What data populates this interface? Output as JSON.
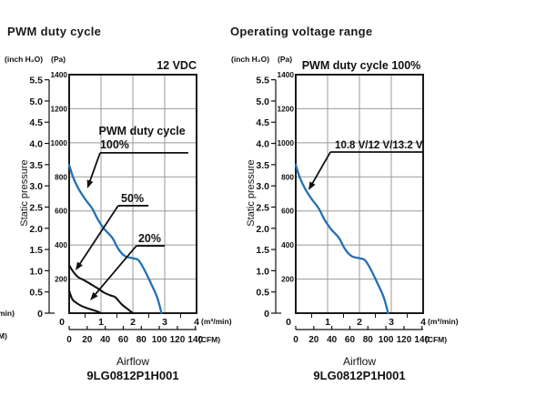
{
  "page": {
    "background": "#ffffff",
    "edge_cutoff": {
      "line1": "min)",
      "line2": "M)"
    }
  },
  "colors": {
    "curve_blue": "#2270b5",
    "curve_black": "#111111",
    "grid_gray": "#999999",
    "axis_black": "#1a1a1a"
  },
  "chart_data": [
    {
      "type": "line",
      "title": "PWM duty cycle",
      "top_label": "12 VDC",
      "xlabel": "Airflow",
      "ylabel": "Static pressure",
      "model": "9LG0812P1H001",
      "xlim": [
        0,
        4
      ],
      "ylim_pa": [
        0,
        1400
      ],
      "grid": true,
      "x_units": [
        {
          "label": "(m³/min)",
          "ticks": [
            "0",
            "1",
            "2",
            "3",
            "4"
          ]
        },
        {
          "label": "(CFM)",
          "ticks": [
            "0",
            "20",
            "40",
            "60",
            "80",
            "100",
            "120",
            "140"
          ]
        }
      ],
      "y_units": [
        {
          "label": "(inch H₂O)",
          "ticks": [
            "0",
            "0.5",
            "1.0",
            "1.5",
            "2.0",
            "2.5",
            "3.0",
            "3.5",
            "4.0",
            "4.5",
            "5.0",
            "5.5"
          ]
        },
        {
          "label": "(Pa)",
          "ticks": [
            "200",
            "400",
            "600",
            "800",
            "1000",
            "1200",
            "1400"
          ]
        }
      ],
      "series": [
        {
          "name": "100%",
          "color": "#2270b5",
          "points_m3min_pa": [
            [
              0,
              870
            ],
            [
              0.12,
              800
            ],
            [
              0.28,
              735
            ],
            [
              0.5,
              670
            ],
            [
              0.72,
              615
            ],
            [
              0.9,
              550
            ],
            [
              1.1,
              495
            ],
            [
              1.35,
              443
            ],
            [
              1.55,
              375
            ],
            [
              1.75,
              335
            ],
            [
              2.0,
              322
            ],
            [
              2.18,
              310
            ],
            [
              2.38,
              248
            ],
            [
              2.58,
              170
            ],
            [
              2.77,
              90
            ],
            [
              2.9,
              0
            ]
          ]
        },
        {
          "name": "50%",
          "color": "#111111",
          "points_m3min_pa": [
            [
              0,
              282
            ],
            [
              0.12,
              245
            ],
            [
              0.28,
              212
            ],
            [
              0.5,
              190
            ],
            [
              0.7,
              168
            ],
            [
              0.9,
              145
            ],
            [
              1.1,
              120
            ],
            [
              1.3,
              104
            ],
            [
              1.45,
              93
            ],
            [
              1.65,
              52
            ],
            [
              1.85,
              22
            ],
            [
              2.0,
              0
            ]
          ]
        },
        {
          "name": "20%",
          "color": "#111111",
          "points_m3min_pa": [
            [
              0,
              132
            ],
            [
              0.1,
              82
            ],
            [
              0.25,
              57
            ],
            [
              0.45,
              37
            ],
            [
              0.65,
              24
            ],
            [
              0.85,
              12
            ],
            [
              1.0,
              0
            ]
          ]
        }
      ],
      "annotations": [
        {
          "text": "PWM duty cycle",
          "size": 12.5,
          "text_anchor": [
            0.93,
            1047
          ]
        },
        {
          "text": "100%",
          "size": 12.5,
          "text_anchor": [
            0.97,
            967
          ],
          "leader": {
            "pa": 941,
            "from": 0.97,
            "to": 3.74
          },
          "tip": [
            0.57,
            732
          ]
        },
        {
          "text": "50%",
          "size": 12.5,
          "text_anchor": [
            1.63,
            652
          ],
          "leader": {
            "pa": 631,
            "from": 1.54,
            "to": 2.49
          },
          "tip": [
            0.2,
            251
          ]
        },
        {
          "text": "20%",
          "size": 12.5,
          "text_anchor": [
            2.17,
            417
          ],
          "leader": {
            "pa": 395,
            "from": 2.11,
            "to": 3.0
          },
          "tip": [
            0.66,
            75
          ]
        }
      ]
    },
    {
      "type": "line",
      "title": "Operating voltage range",
      "top_label": "PWM duty cycle 100%",
      "xlabel": "Airflow",
      "ylabel": "Static pressure",
      "model": "9LG0812P1H001",
      "xlim": [
        0,
        4
      ],
      "ylim_pa": [
        0,
        1400
      ],
      "grid": true,
      "x_units": [
        {
          "label": "(m³/min)",
          "ticks": [
            "0",
            "1",
            "2",
            "3",
            "4"
          ]
        },
        {
          "label": "(CFM)",
          "ticks": [
            "0",
            "20",
            "40",
            "60",
            "80",
            "100",
            "120",
            "140"
          ]
        }
      ],
      "y_units": [
        {
          "label": "(inch H₂O)",
          "ticks": [
            "0",
            "0.5",
            "1.0",
            "1.5",
            "2.0",
            "2.5",
            "3.0",
            "3.5",
            "4.0",
            "4.5",
            "5.0",
            "5.5"
          ]
        },
        {
          "label": "(Pa)",
          "ticks": [
            "200",
            "400",
            "600",
            "800",
            "1000",
            "1200",
            "1400"
          ]
        }
      ],
      "series": [
        {
          "name": "10.8 V/12 V/13.2 V",
          "color": "#2270b5",
          "points_m3min_pa": [
            [
              0,
              870
            ],
            [
              0.12,
              800
            ],
            [
              0.28,
              735
            ],
            [
              0.5,
              670
            ],
            [
              0.72,
              615
            ],
            [
              0.9,
              550
            ],
            [
              1.1,
              495
            ],
            [
              1.35,
              443
            ],
            [
              1.55,
              375
            ],
            [
              1.75,
              335
            ],
            [
              2.0,
              322
            ],
            [
              2.18,
              310
            ],
            [
              2.38,
              248
            ],
            [
              2.58,
              170
            ],
            [
              2.77,
              90
            ],
            [
              2.9,
              0
            ]
          ]
        }
      ],
      "annotations": [
        {
          "text": "10.8 V/12 V/13.2 V",
          "size": 11.5,
          "text_anchor": [
            1.23,
            967
          ],
          "leader": {
            "pa": 946,
            "from": 1.09,
            "to": 4.0
          },
          "tip": [
            0.4,
            722
          ]
        }
      ]
    }
  ]
}
